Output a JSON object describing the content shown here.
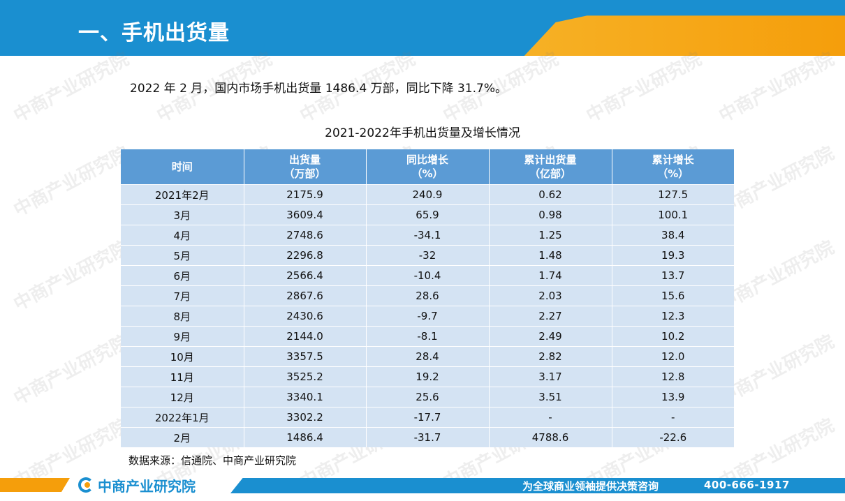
{
  "header": {
    "title": "一、手机出货量"
  },
  "intro": "2022 年 2 月，国内市场手机出货量 1486.4 万部，同比下降 31.7%。",
  "table": {
    "caption": "2021-2022年手机出货量及增长情况",
    "headers": [
      [
        "时间"
      ],
      [
        "出货量",
        "（万部）"
      ],
      [
        "同比增长",
        "（%）"
      ],
      [
        "累计出货量",
        "（亿部）"
      ],
      [
        "累计增长",
        "（%）"
      ]
    ],
    "rows": [
      [
        "2021年2月",
        "2175.9",
        "240.9",
        "0.62",
        "127.5"
      ],
      [
        "3月",
        "3609.4",
        "65.9",
        "0.98",
        "100.1"
      ],
      [
        "4月",
        "2748.6",
        "-34.1",
        "1.25",
        "38.4"
      ],
      [
        "5月",
        "2296.8",
        "-32",
        "1.48",
        "19.3"
      ],
      [
        "6月",
        "2566.4",
        "-10.4",
        "1.74",
        "13.7"
      ],
      [
        "7月",
        "2867.6",
        "28.6",
        "2.03",
        "15.6"
      ],
      [
        "8月",
        "2430.6",
        "-9.7",
        "2.27",
        "12.3"
      ],
      [
        "9月",
        "2144.0",
        "-8.1",
        "2.49",
        "10.2"
      ],
      [
        "10月",
        "3357.5",
        "28.4",
        "2.82",
        "12.0"
      ],
      [
        "11月",
        "3525.2",
        "19.2",
        "3.17",
        "12.8"
      ],
      [
        "12月",
        "3340.1",
        "25.6",
        "3.51",
        "13.9"
      ],
      [
        "2022年1月",
        "3302.2",
        "-17.7",
        "-",
        "-"
      ],
      [
        "2月",
        "1486.4",
        "-31.7",
        "4788.6",
        "-22.6"
      ]
    ]
  },
  "source": "数据来源：信通院、中商产业研究院",
  "footer": {
    "logo_text": "中商产业研究院",
    "slogan": "为全球商业领袖提供决策咨询",
    "phone": "400-666-1917"
  },
  "watermark": "中商产业研究院",
  "colors": {
    "header_blue": "#1a8fd0",
    "accent_orange": "#f59e0b",
    "table_header": "#5b9bd5",
    "table_cell": "#d4e3f3"
  }
}
